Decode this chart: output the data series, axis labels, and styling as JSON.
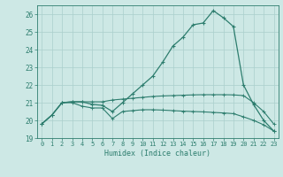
{
  "title": "",
  "xlabel": "Humidex (Indice chaleur)",
  "bg_color": "#cde8e5",
  "line_color": "#2d7d6e",
  "grid_color": "#aacfcc",
  "xlim": [
    -0.5,
    23.5
  ],
  "ylim": [
    19,
    26.5
  ],
  "xticks": [
    0,
    1,
    2,
    3,
    4,
    5,
    6,
    7,
    8,
    9,
    10,
    11,
    12,
    13,
    14,
    15,
    16,
    17,
    18,
    19,
    20,
    21,
    22,
    23
  ],
  "yticks": [
    19,
    20,
    21,
    22,
    23,
    24,
    25,
    26
  ],
  "curve1_x": [
    0,
    1,
    2,
    3,
    4,
    5,
    6,
    7,
    8,
    9,
    10,
    11,
    12,
    13,
    14,
    15,
    16,
    17,
    18,
    19,
    20,
    21,
    22,
    23
  ],
  "curve1_y": [
    19.8,
    20.3,
    21.0,
    21.05,
    21.05,
    20.9,
    20.85,
    20.5,
    21.0,
    21.5,
    22.0,
    22.5,
    23.3,
    24.2,
    24.7,
    25.4,
    25.5,
    26.2,
    25.8,
    25.3,
    22.0,
    20.9,
    20.0,
    19.4
  ],
  "curve2_x": [
    0,
    1,
    2,
    3,
    4,
    5,
    6,
    7,
    8,
    9,
    10,
    11,
    12,
    13,
    14,
    15,
    16,
    17,
    18,
    19,
    20,
    21,
    22,
    23
  ],
  "curve2_y": [
    19.8,
    20.3,
    21.0,
    21.05,
    21.05,
    21.05,
    21.05,
    21.15,
    21.2,
    21.25,
    21.3,
    21.35,
    21.38,
    21.4,
    21.42,
    21.44,
    21.45,
    21.45,
    21.45,
    21.44,
    21.4,
    21.0,
    20.5,
    19.8
  ],
  "curve3_x": [
    0,
    1,
    2,
    3,
    4,
    5,
    6,
    7,
    8,
    9,
    10,
    11,
    12,
    13,
    14,
    15,
    16,
    17,
    18,
    19,
    20,
    21,
    22,
    23
  ],
  "curve3_y": [
    19.8,
    20.3,
    21.0,
    21.0,
    20.8,
    20.7,
    20.7,
    20.1,
    20.5,
    20.55,
    20.6,
    20.6,
    20.58,
    20.55,
    20.52,
    20.5,
    20.48,
    20.45,
    20.42,
    20.38,
    20.2,
    20.0,
    19.75,
    19.4
  ]
}
